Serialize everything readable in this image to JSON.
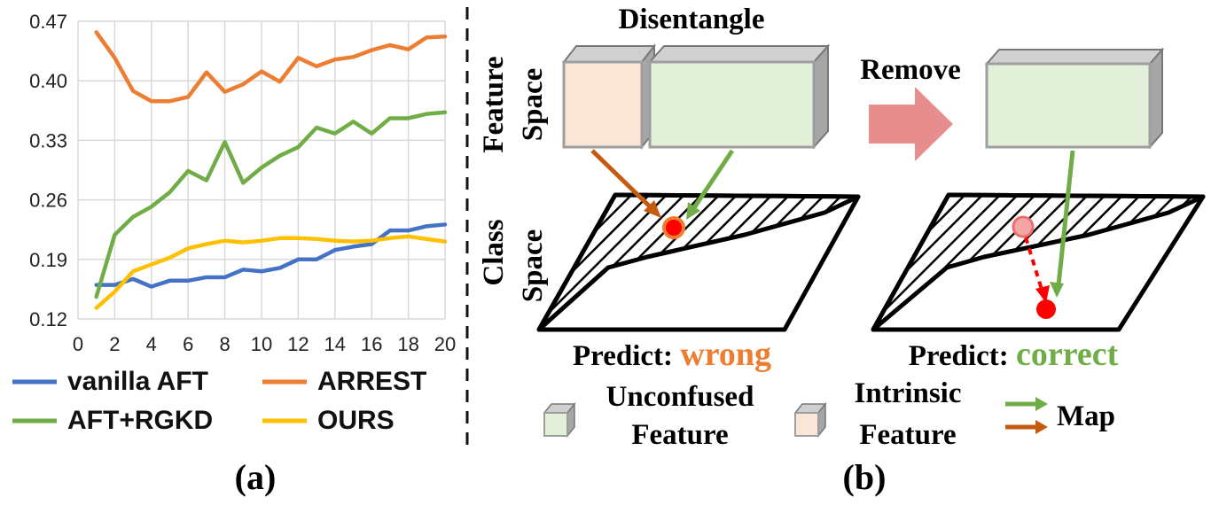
{
  "panel_a": {
    "caption": "(a)",
    "chart_data": {
      "type": "line",
      "x": [
        1,
        2,
        3,
        4,
        5,
        6,
        7,
        8,
        9,
        10,
        11,
        12,
        13,
        14,
        15,
        16,
        17,
        18,
        19,
        20
      ],
      "xticks": [
        "0",
        "2",
        "4",
        "6",
        "8",
        "10",
        "12",
        "14",
        "16",
        "18",
        "20"
      ],
      "yticks": [
        "0.12",
        "0.19",
        "0.26",
        "0.33",
        "0.40",
        "0.47"
      ],
      "xlim": [
        0,
        20
      ],
      "ylim": [
        0.12,
        0.47
      ],
      "grid": true,
      "legend_position": "bottom",
      "series": [
        {
          "name": "vanilla AFT",
          "color": "#4472C4",
          "values": [
            0.16,
            0.16,
            0.167,
            0.158,
            0.165,
            0.165,
            0.169,
            0.169,
            0.178,
            0.176,
            0.18,
            0.19,
            0.19,
            0.201,
            0.205,
            0.208,
            0.224,
            0.224,
            0.229,
            0.231
          ]
        },
        {
          "name": "ARREST",
          "color": "#ED7D31",
          "values": [
            0.457,
            0.427,
            0.388,
            0.376,
            0.376,
            0.381,
            0.41,
            0.387,
            0.396,
            0.411,
            0.399,
            0.427,
            0.417,
            0.425,
            0.428,
            0.436,
            0.442,
            0.437,
            0.451,
            0.452
          ]
        },
        {
          "name": "AFT+RGKD",
          "color": "#70AD47",
          "values": [
            0.146,
            0.219,
            0.24,
            0.252,
            0.269,
            0.294,
            0.283,
            0.328,
            0.28,
            0.298,
            0.312,
            0.322,
            0.345,
            0.338,
            0.352,
            0.338,
            0.356,
            0.356,
            0.361,
            0.363
          ]
        },
        {
          "name": "OURS",
          "color": "#FFC000",
          "values": [
            0.133,
            0.152,
            0.176,
            0.184,
            0.192,
            0.203,
            0.208,
            0.212,
            0.21,
            0.212,
            0.215,
            0.215,
            0.214,
            0.212,
            0.211,
            0.212,
            0.215,
            0.217,
            0.214,
            0.211
          ]
        }
      ]
    }
  },
  "panel_b": {
    "caption": "(b)",
    "disentangle_label": "Disentangle",
    "remove_label": "Remove",
    "feature_space_line1": "Feature",
    "feature_space_line2": "Space",
    "class_space_line1": "Class",
    "class_space_line2": "Space",
    "predict_prefix": "Predict: ",
    "predict_wrong": "wrong",
    "predict_correct": "correct",
    "wrong_color": "#ED7D31",
    "correct_color": "#70AD47",
    "legend": {
      "unconfused_line1": "Unconfused",
      "unconfused_line2": "Feature",
      "intrinsic_line1": "Intrinsic",
      "intrinsic_line2": "Feature",
      "map_label": "Map"
    }
  }
}
